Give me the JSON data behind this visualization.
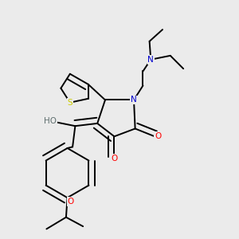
{
  "bg_color": "#ebebeb",
  "atom_colors": {
    "C": "#000000",
    "N": "#0000cc",
    "O": "#ff0000",
    "S": "#cccc00",
    "H": "#607070"
  },
  "bond_color": "#000000",
  "bond_width": 1.4
}
